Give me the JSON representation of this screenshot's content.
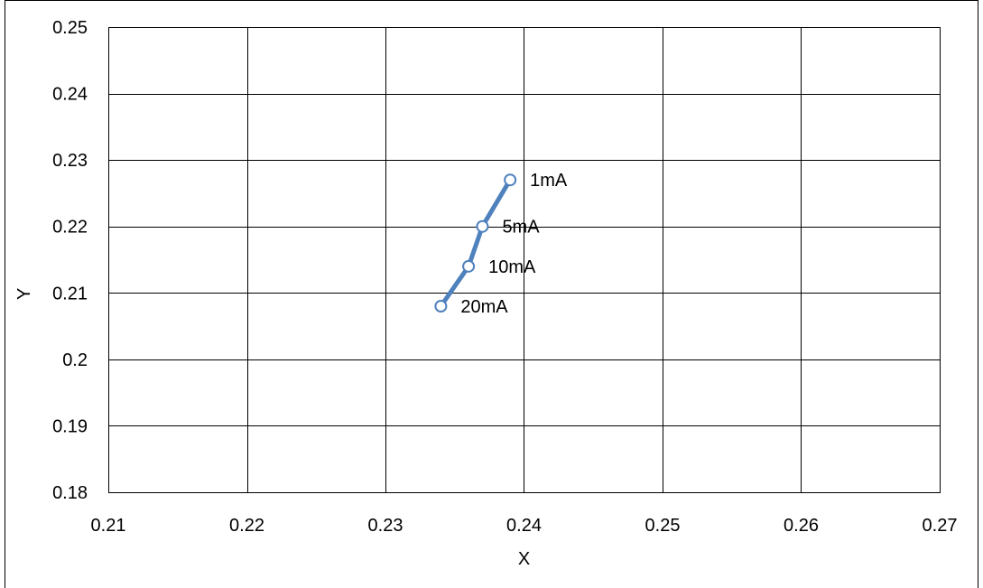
{
  "chart_data": {
    "type": "scatter",
    "title": "",
    "xlabel": "X",
    "ylabel": "Y",
    "xlim": [
      0.21,
      0.27
    ],
    "ylim": [
      0.18,
      0.25
    ],
    "x_ticks": [
      "0.21",
      "0.22",
      "0.23",
      "0.24",
      "0.25",
      "0.26",
      "0.27"
    ],
    "y_ticks": [
      "0.25",
      "0.24",
      "0.23",
      "0.22",
      "0.21",
      "0.2",
      "0.19",
      "0.18"
    ],
    "grid": true,
    "legend": "none",
    "series": [
      {
        "color": "#4f81bd",
        "marker": "open-circle",
        "points": [
          {
            "x": 0.239,
            "y": 0.227,
            "label": "1mA"
          },
          {
            "x": 0.237,
            "y": 0.22,
            "label": "5mA"
          },
          {
            "x": 0.236,
            "y": 0.214,
            "label": "10mA"
          },
          {
            "x": 0.234,
            "y": 0.208,
            "label": "20mA"
          }
        ]
      }
    ]
  }
}
